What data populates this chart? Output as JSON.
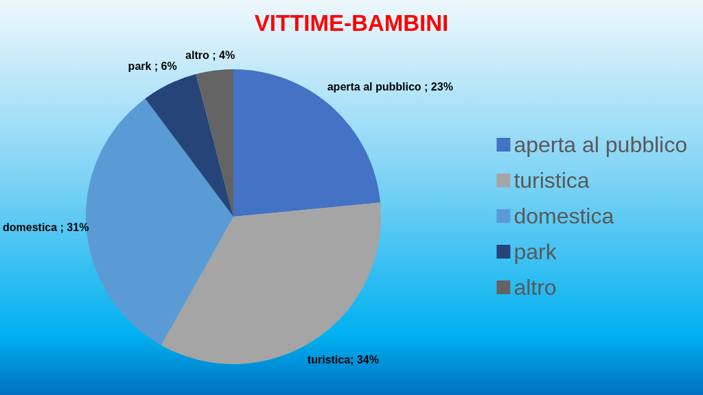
{
  "chart_data": {
    "type": "pie",
    "title": "VITTIME-BAMBINI",
    "categories": [
      "aperta al pubblico",
      "turistica",
      "domestica",
      "park",
      "altro"
    ],
    "values": [
      23,
      34,
      31,
      6,
      4
    ],
    "colors": [
      "#4472c4",
      "#a5a5a5",
      "#5b9bd5",
      "#264478",
      "#636363"
    ],
    "value_labels": [
      "aperta al pubblico ; 23%",
      "turistica; 34%",
      "domestica ; 31%",
      "park ; 6%",
      "altro ; 4%"
    ],
    "legend": "right"
  }
}
